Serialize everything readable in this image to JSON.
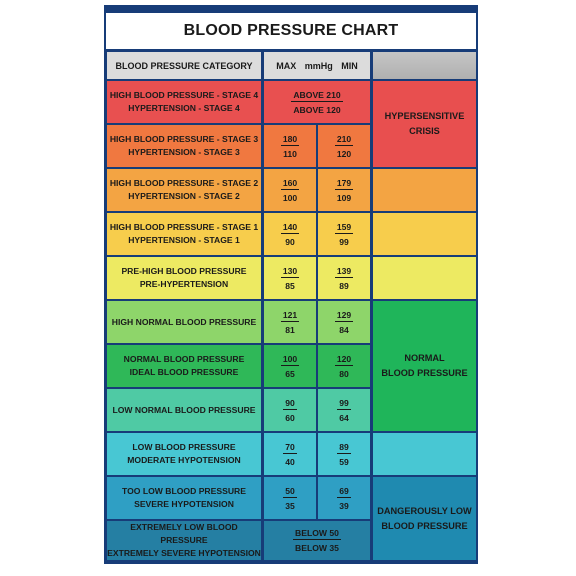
{
  "title": "BLOOD PRESSURE CHART",
  "header": {
    "category": "BLOOD PRESSURE CATEGORY",
    "mmhg": "MAX  mmHg  MIN"
  },
  "colors": {
    "frame": "#173c78",
    "rows": [
      "#e85050",
      "#f07840",
      "#f3a443",
      "#f7cd4c",
      "#edea62",
      "#8ed56a",
      "#2fb858",
      "#4fcaa4",
      "#48c7d3",
      "#2f9fc4",
      "#257fa3"
    ],
    "crisis": "#e84f4f",
    "normal": "#1fb55a",
    "danger": "#1f8ab0"
  },
  "rows": [
    {
      "line1": "HIGH BLOOD PRESSURE - STAGE 4",
      "line2": "HYPERTENSION - STAGE 4",
      "combined": [
        "ABOVE 210",
        "ABOVE 120"
      ]
    },
    {
      "line1": "HIGH BLOOD PRESSURE - STAGE 3",
      "line2": "HYPERTENSION - STAGE 3",
      "max": [
        "180",
        "110"
      ],
      "min": [
        "210",
        "120"
      ]
    },
    {
      "line1": "HIGH BLOOD PRESSURE - STAGE 2",
      "line2": "HYPERTENSION - STAGE 2",
      "max": [
        "160",
        "100"
      ],
      "min": [
        "179",
        "109"
      ]
    },
    {
      "line1": "HIGH BLOOD PRESSURE - STAGE 1",
      "line2": "HYPERTENSION - STAGE 1",
      "max": [
        "140",
        "90"
      ],
      "min": [
        "159",
        "99"
      ]
    },
    {
      "line1": "PRE-HIGH BLOOD PRESSURE",
      "line2": "PRE-HYPERTENSION",
      "max": [
        "130",
        "85"
      ],
      "min": [
        "139",
        "89"
      ]
    },
    {
      "line1": "HIGH NORMAL BLOOD PRESSURE",
      "max": [
        "121",
        "81"
      ],
      "min": [
        "129",
        "84"
      ]
    },
    {
      "line1": "NORMAL BLOOD PRESSURE",
      "line2": "IDEAL BLOOD PRESSURE",
      "max": [
        "100",
        "65"
      ],
      "min": [
        "120",
        "80"
      ]
    },
    {
      "line1": "LOW NORMAL BLOOD PRESSURE",
      "max": [
        "90",
        "60"
      ],
      "min": [
        "99",
        "64"
      ]
    },
    {
      "line1": "LOW BLOOD PRESSURE",
      "line2": "MODERATE HYPOTENSION",
      "max": [
        "70",
        "40"
      ],
      "min": [
        "89",
        "59"
      ]
    },
    {
      "line1": "TOO LOW BLOOD PRESSURE",
      "line2": "SEVERE HYPOTENSION",
      "max": [
        "50",
        "35"
      ],
      "min": [
        "69",
        "39"
      ]
    },
    {
      "line1": "EXTREMELY LOW BLOOD PRESSURE",
      "line2": "EXTREMELY SEVERE HYPOTENSION",
      "combined": [
        "BELOW 50",
        "BELOW 35"
      ]
    }
  ],
  "groups": {
    "crisis": [
      "HYPERSENSITIVE",
      "CRISIS"
    ],
    "normal": [
      "NORMAL",
      "BLOOD PRESSURE"
    ],
    "danger": [
      "DANGEROUSLY LOW",
      "BLOOD PRESSURE"
    ]
  }
}
